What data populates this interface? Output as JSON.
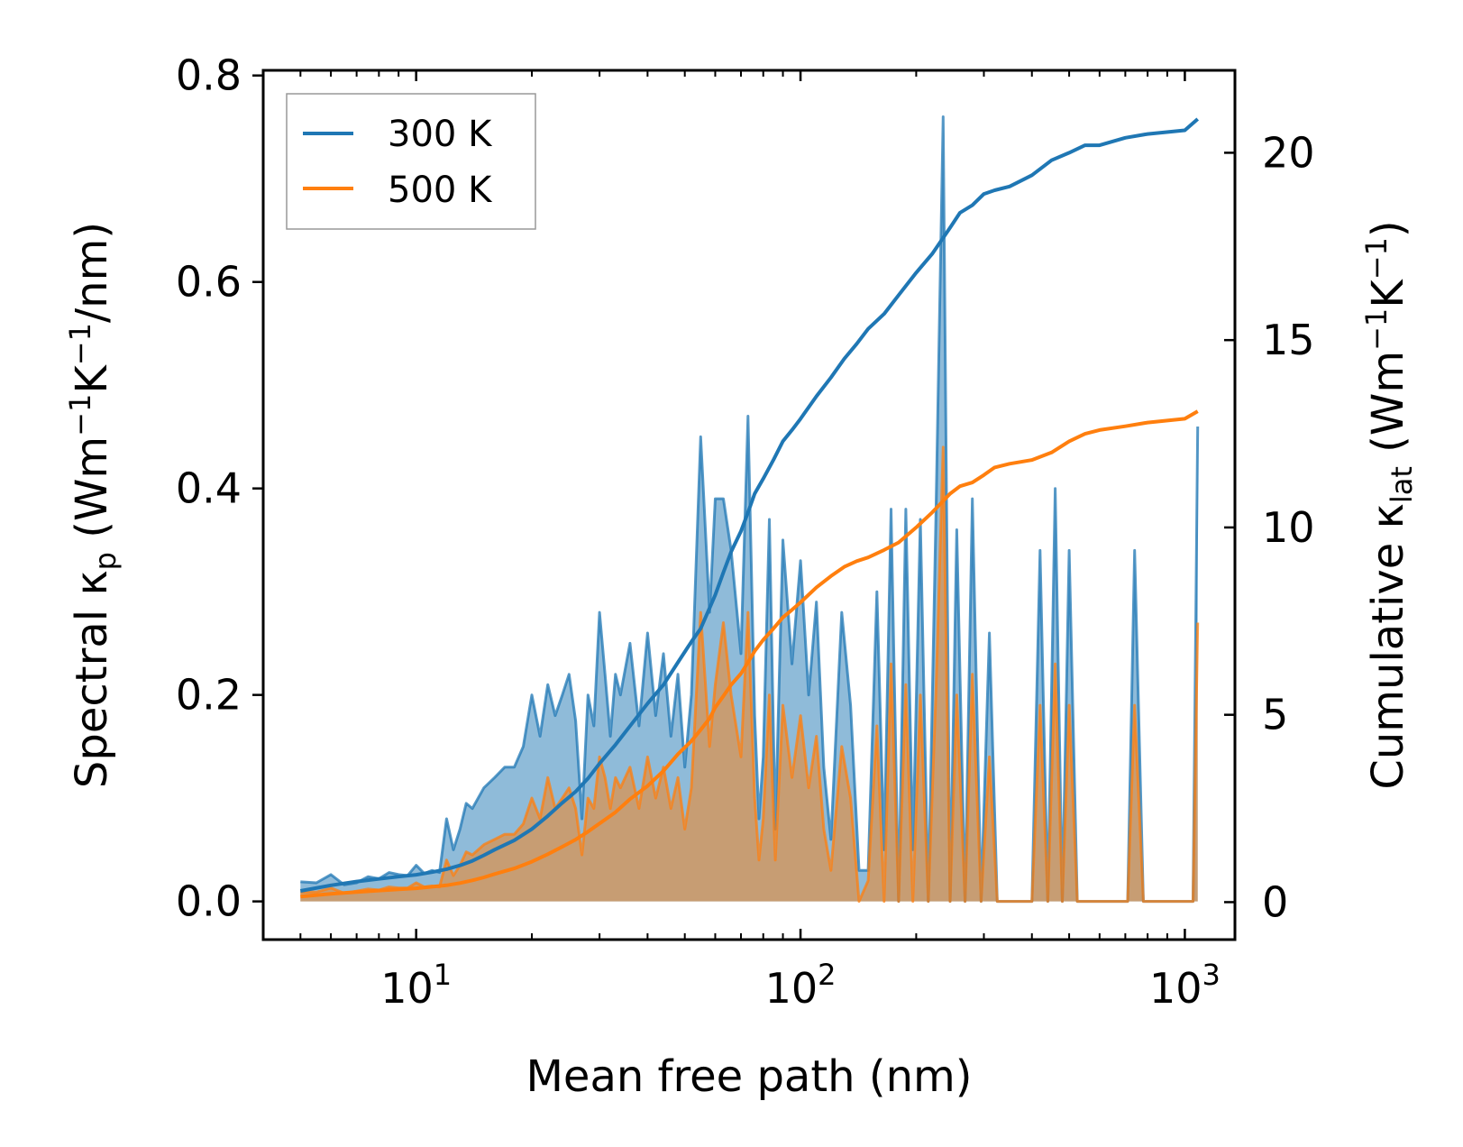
{
  "chart_data": {
    "type": "line",
    "title": "",
    "xlabel": "Mean free path (nm)",
    "xscale": "log",
    "xlim": [
      4.0,
      1350
    ],
    "x_ticks": [
      {
        "value": 10,
        "base": "10",
        "exp": "1"
      },
      {
        "value": 100,
        "base": "10",
        "exp": "2"
      },
      {
        "value": 1000,
        "base": "10",
        "exp": "3"
      }
    ],
    "ylabel_left": {
      "prefix": "Spectral κ",
      "sub": "p",
      "units_open": " (Wm",
      "units_e1": "−1",
      "units_mid": "K",
      "units_e2": "−1",
      "units_close": "/nm)"
    },
    "ylim_left": [
      -0.037,
      0.805
    ],
    "y_ticks_left": [
      "0.0",
      "0.2",
      "0.4",
      "0.6",
      "0.8"
    ],
    "ylabel_right": {
      "prefix": "Cumulative κ",
      "sub": "lat",
      "units_open": " (Wm",
      "units_e1": "−1",
      "units_mid": "K",
      "units_e2": "−1",
      "units_close": ")"
    },
    "ylim_right": [
      -1.0,
      22.2
    ],
    "y_ticks_right": [
      "0",
      "5",
      "10",
      "15",
      "20"
    ],
    "legend": {
      "position": "top-left",
      "entries": [
        "300 K",
        "500 K"
      ]
    },
    "series": [
      {
        "name": "300 K",
        "color": "#1f77b4",
        "fill": "#1f77b4",
        "axis": "left",
        "kind": "spectral",
        "x": [
          5.0,
          5.5,
          6.0,
          6.5,
          7.0,
          7.5,
          8.0,
          8.5,
          9.0,
          9.5,
          10.0,
          10.5,
          11.0,
          11.5,
          12.0,
          12.5,
          13.0,
          13.5,
          14.0,
          15.0,
          16.0,
          17.0,
          18.0,
          19.0,
          20.0,
          21.0,
          22.0,
          23.0,
          24.0,
          25.0,
          26.0,
          27.0,
          28.0,
          29.0,
          30.0,
          31.0,
          32.0,
          33.0,
          34.0,
          36.0,
          38.0,
          40.0,
          42.0,
          44.0,
          46.0,
          48.0,
          50.0,
          52.0,
          55.0,
          58.0,
          60.0,
          63.0,
          66.0,
          70.0,
          73.0,
          76.0,
          78.0,
          80.0,
          83.0,
          86.0,
          90.0,
          95.0,
          100.0,
          105.0,
          110.0,
          115.0,
          120.0,
          128.0,
          135.0,
          142.0,
          150.0,
          158.0,
          165.0,
          172.0,
          180.0,
          188.0,
          196.0,
          205.0,
          215.0,
          225.0,
          235.0,
          245.0,
          255.0,
          268.0,
          280.0,
          295.0,
          310.0,
          325.0,
          340.0,
          360.0,
          380.0,
          400.0,
          420.0,
          440.0,
          460.0,
          480.0,
          500.0,
          525.0,
          550.0,
          575.0,
          600.0,
          640.0,
          680.0,
          710.0,
          740.0,
          780.0,
          830.0,
          880.0,
          930.0,
          980.0,
          1030.0,
          1050.0,
          1080.0
        ],
        "y": [
          0.019,
          0.018,
          0.026,
          0.016,
          0.018,
          0.024,
          0.022,
          0.028,
          0.026,
          0.025,
          0.035,
          0.027,
          0.03,
          0.028,
          0.08,
          0.05,
          0.07,
          0.095,
          0.09,
          0.11,
          0.12,
          0.13,
          0.13,
          0.15,
          0.2,
          0.16,
          0.21,
          0.18,
          0.2,
          0.22,
          0.175,
          0.08,
          0.2,
          0.17,
          0.28,
          0.22,
          0.16,
          0.22,
          0.2,
          0.25,
          0.17,
          0.26,
          0.18,
          0.24,
          0.16,
          0.22,
          0.13,
          0.2,
          0.45,
          0.28,
          0.39,
          0.39,
          0.34,
          0.24,
          0.47,
          0.18,
          0.08,
          0.14,
          0.37,
          0.07,
          0.35,
          0.23,
          0.33,
          0.2,
          0.29,
          0.13,
          0.06,
          0.28,
          0.19,
          0.03,
          0.03,
          0.3,
          0.05,
          0.38,
          0.0,
          0.38,
          0.05,
          0.37,
          0.0,
          0.37,
          0.76,
          0.0,
          0.36,
          0.0,
          0.39,
          0.0,
          0.26,
          0.0,
          0.0,
          0.0,
          0.0,
          0.0,
          0.34,
          0.0,
          0.4,
          0.0,
          0.34,
          0.0,
          0.0,
          0.0,
          0.0,
          0.0,
          0.0,
          0.0,
          0.34,
          0.0,
          0.0,
          0.0,
          0.0,
          0.0,
          0.0,
          0.0,
          0.46
        ]
      },
      {
        "name": "500 K",
        "color": "#ff7f0e",
        "fill": "#ff7f0e",
        "axis": "left",
        "kind": "spectral",
        "x": [
          5.0,
          5.5,
          6.0,
          6.5,
          7.0,
          7.5,
          8.0,
          8.5,
          9.0,
          9.5,
          10.0,
          10.5,
          11.0,
          11.5,
          12.0,
          12.5,
          13.0,
          13.5,
          14.0,
          15.0,
          16.0,
          17.0,
          18.0,
          19.0,
          20.0,
          21.0,
          22.0,
          23.0,
          24.0,
          25.0,
          26.0,
          27.0,
          28.0,
          29.0,
          30.0,
          31.0,
          32.0,
          33.0,
          34.0,
          36.0,
          38.0,
          40.0,
          42.0,
          44.0,
          46.0,
          48.0,
          50.0,
          52.0,
          55.0,
          58.0,
          60.0,
          63.0,
          66.0,
          70.0,
          73.0,
          76.0,
          78.0,
          80.0,
          83.0,
          86.0,
          90.0,
          95.0,
          100.0,
          105.0,
          110.0,
          115.0,
          120.0,
          128.0,
          135.0,
          142.0,
          150.0,
          158.0,
          165.0,
          172.0,
          180.0,
          188.0,
          196.0,
          205.0,
          215.0,
          225.0,
          235.0,
          245.0,
          255.0,
          268.0,
          280.0,
          295.0,
          310.0,
          325.0,
          340.0,
          360.0,
          380.0,
          400.0,
          420.0,
          440.0,
          460.0,
          480.0,
          500.0,
          525.0,
          550.0,
          575.0,
          600.0,
          640.0,
          680.0,
          710.0,
          740.0,
          780.0,
          830.0,
          880.0,
          930.0,
          980.0,
          1030.0,
          1050.0,
          1080.0
        ],
        "y": [
          0.009,
          0.009,
          0.013,
          0.008,
          0.01,
          0.012,
          0.011,
          0.014,
          0.013,
          0.013,
          0.018,
          0.014,
          0.015,
          0.014,
          0.04,
          0.025,
          0.035,
          0.048,
          0.045,
          0.055,
          0.06,
          0.065,
          0.065,
          0.075,
          0.1,
          0.08,
          0.12,
          0.09,
          0.1,
          0.11,
          0.09,
          0.045,
          0.1,
          0.09,
          0.14,
          0.12,
          0.09,
          0.12,
          0.11,
          0.13,
          0.09,
          0.14,
          0.1,
          0.13,
          0.09,
          0.12,
          0.07,
          0.11,
          0.28,
          0.15,
          0.21,
          0.27,
          0.2,
          0.14,
          0.28,
          0.1,
          0.04,
          0.08,
          0.2,
          0.04,
          0.19,
          0.12,
          0.18,
          0.11,
          0.16,
          0.07,
          0.03,
          0.15,
          0.1,
          0.0,
          0.02,
          0.17,
          0.0,
          0.23,
          0.0,
          0.21,
          0.0,
          0.2,
          0.0,
          0.2,
          0.44,
          0.0,
          0.2,
          0.0,
          0.22,
          0.0,
          0.14,
          0.0,
          0.0,
          0.0,
          0.0,
          0.0,
          0.19,
          0.0,
          0.23,
          0.0,
          0.19,
          0.0,
          0.0,
          0.0,
          0.0,
          0.0,
          0.0,
          0.0,
          0.19,
          0.0,
          0.0,
          0.0,
          0.0,
          0.0,
          0.0,
          0.0,
          0.27
        ]
      },
      {
        "name": "300 K",
        "color": "#1f77b4",
        "axis": "right",
        "kind": "cumulative",
        "x": [
          5.0,
          6.0,
          7.0,
          8.0,
          9.0,
          10.0,
          11.0,
          12.0,
          13.0,
          14.0,
          15.0,
          16.0,
          18.0,
          20.0,
          22.0,
          24.0,
          26.0,
          28.0,
          30.0,
          33.0,
          36.0,
          40.0,
          44.0,
          48.0,
          52.0,
          55.0,
          58.0,
          60.0,
          63.0,
          66.0,
          70.0,
          73.0,
          76.0,
          80.0,
          85.0,
          90.0,
          95.0,
          100.0,
          110.0,
          120.0,
          130.0,
          140.0,
          150.0,
          165.0,
          180.0,
          200.0,
          220.0,
          245.0,
          260.0,
          280.0,
          300.0,
          320.0,
          350.0,
          400.0,
          450.0,
          500.0,
          550.0,
          600.0,
          700.0,
          800.0,
          1000.0,
          1080.0
        ],
        "y": [
          0.3,
          0.45,
          0.55,
          0.62,
          0.68,
          0.73,
          0.8,
          0.88,
          0.98,
          1.1,
          1.25,
          1.4,
          1.65,
          1.95,
          2.3,
          2.65,
          2.95,
          3.3,
          3.7,
          4.2,
          4.7,
          5.3,
          5.8,
          6.4,
          6.95,
          7.3,
          7.85,
          8.2,
          8.8,
          9.35,
          9.9,
          10.4,
          10.9,
          11.3,
          11.8,
          12.3,
          12.6,
          12.9,
          13.5,
          14.0,
          14.5,
          14.9,
          15.3,
          15.7,
          16.2,
          16.8,
          17.3,
          18.0,
          18.4,
          18.6,
          18.9,
          19.0,
          19.1,
          19.4,
          19.8,
          20.0,
          20.2,
          20.2,
          20.4,
          20.5,
          20.6,
          20.9
        ]
      },
      {
        "name": "500 K",
        "color": "#ff7f0e",
        "axis": "right",
        "kind": "cumulative",
        "x": [
          5.0,
          6.0,
          7.0,
          8.0,
          9.0,
          10.0,
          11.0,
          12.0,
          13.0,
          14.0,
          15.0,
          16.0,
          18.0,
          20.0,
          22.0,
          24.0,
          26.0,
          28.0,
          30.0,
          33.0,
          36.0,
          40.0,
          44.0,
          48.0,
          52.0,
          55.0,
          58.0,
          60.0,
          63.0,
          66.0,
          70.0,
          73.0,
          76.0,
          80.0,
          85.0,
          90.0,
          95.0,
          100.0,
          110.0,
          120.0,
          130.0,
          140.0,
          150.0,
          165.0,
          180.0,
          200.0,
          220.0,
          245.0,
          260.0,
          280.0,
          300.0,
          320.0,
          350.0,
          400.0,
          450.0,
          500.0,
          550.0,
          600.0,
          700.0,
          800.0,
          1000.0,
          1080.0
        ],
        "y": [
          0.15,
          0.22,
          0.27,
          0.31,
          0.34,
          0.37,
          0.41,
          0.45,
          0.51,
          0.58,
          0.66,
          0.75,
          0.9,
          1.08,
          1.28,
          1.48,
          1.67,
          1.88,
          2.1,
          2.4,
          2.75,
          3.1,
          3.5,
          3.95,
          4.3,
          4.6,
          4.9,
          5.2,
          5.5,
          5.8,
          6.1,
          6.4,
          6.7,
          7.0,
          7.3,
          7.6,
          7.8,
          8.0,
          8.4,
          8.7,
          8.95,
          9.1,
          9.2,
          9.4,
          9.6,
          10.0,
          10.4,
          10.9,
          11.1,
          11.2,
          11.4,
          11.6,
          11.7,
          11.8,
          12.0,
          12.3,
          12.5,
          12.6,
          12.7,
          12.8,
          12.9,
          13.1
        ]
      }
    ]
  }
}
